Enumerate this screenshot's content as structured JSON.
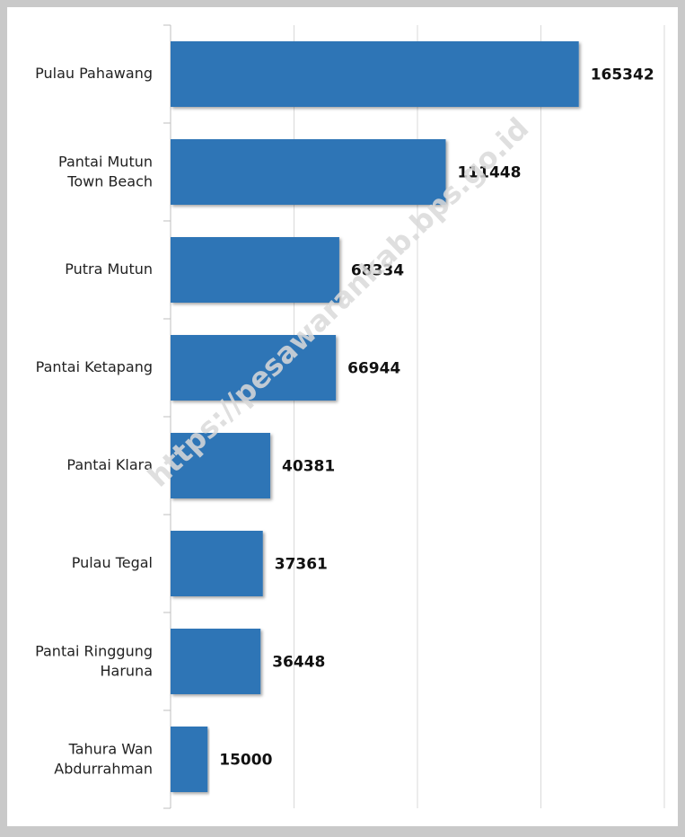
{
  "chart_data": {
    "type": "hbar",
    "categories": [
      "Pulau Pahawang",
      "Pantai Mutun\nTown Beach",
      "Putra Mutun",
      "Pantai Ketapang",
      "Pantai Klara",
      "Pulau Tegal",
      "Pantai Ringgung\nHaruna",
      "Tahura Wan\nAbdurrahman"
    ],
    "values": [
      165342,
      111448,
      68334,
      66944,
      40381,
      37361,
      36448,
      15000
    ],
    "color": "#2e75b6",
    "xlim": [
      0,
      200000
    ],
    "xticks": [
      0,
      50000,
      100000,
      150000,
      200000
    ],
    "grid": true,
    "watermark": "https://pesawarankab.bps.go.id"
  }
}
